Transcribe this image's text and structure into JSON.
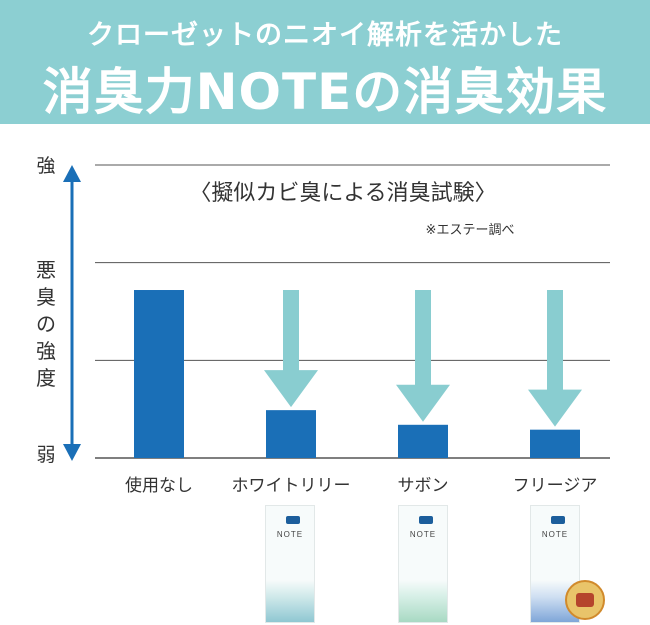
{
  "header": {
    "subtitle": "クローゼットのニオイ解析を活かした",
    "title": "消臭力NOTEの消臭効果"
  },
  "colors": {
    "header_bg": "#8ccfd2",
    "bar": "#1a6fb7",
    "arrow": "#89cdd0",
    "grid": "#555555",
    "axis_arrow": "#1a6fb7"
  },
  "chart_data": {
    "type": "bar",
    "title": "〈擬似カビ臭による消臭試験〉",
    "note": "※エステー調べ",
    "ylabel": "悪臭の強度",
    "y_top_label": "強",
    "y_bottom_label": "弱",
    "ylim": [
      0,
      3
    ],
    "grid": true,
    "categories": [
      "使用なし",
      "ホワイトリリー",
      "サボン",
      "フリージア"
    ],
    "values": [
      1.72,
      0.49,
      0.34,
      0.29
    ],
    "reduction_arrows": [
      false,
      true,
      true,
      true
    ]
  },
  "products": [
    {
      "brand": "NOTE",
      "icon": "white-lily-package-icon"
    },
    {
      "brand": "NOTE",
      "icon": "savon-package-icon"
    },
    {
      "brand": "NOTE",
      "icon": "freesia-package-icon"
    }
  ],
  "badge": {
    "icon": "pharmacy-badge-icon"
  }
}
